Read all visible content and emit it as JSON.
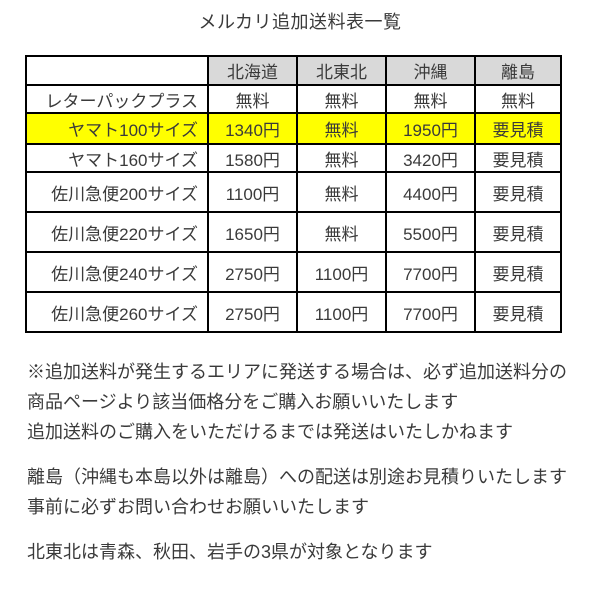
{
  "page": {
    "title": "メルカリ追加送料表一覧"
  },
  "table": {
    "columns": [
      "",
      "北海道",
      "北東北",
      "沖縄",
      "離島"
    ],
    "rows": [
      {
        "label": "レターパックプラス",
        "values": [
          "無料",
          "無料",
          "無料",
          "無料"
        ],
        "highlight": false
      },
      {
        "label": "ヤマト100サイズ",
        "values": [
          "1340円",
          "無料",
          "1950円",
          "要見積"
        ],
        "highlight": true
      },
      {
        "label": "ヤマト160サイズ",
        "values": [
          "1580円",
          "無料",
          "3420円",
          "要見積"
        ],
        "highlight": false
      },
      {
        "label": "佐川急便200サイズ",
        "values": [
          "1100円",
          "無料",
          "4400円",
          "要見積"
        ],
        "highlight": false
      },
      {
        "label": "佐川急便220サイズ",
        "values": [
          "1650円",
          "無料",
          "5500円",
          "要見積"
        ],
        "highlight": false
      },
      {
        "label": "佐川急便240サイズ",
        "values": [
          "2750円",
          "1100円",
          "7700円",
          "要見積"
        ],
        "highlight": false
      },
      {
        "label": "佐川急便260サイズ",
        "values": [
          "2750円",
          "1100円",
          "7700円",
          "要見積"
        ],
        "highlight": false
      }
    ],
    "header_bg": "#d9d9d9",
    "highlight_color": "#ffff00",
    "border_color": "#000000"
  },
  "notes": {
    "paragraph1": [
      "※追加送料が発生するエリアに発送する場合は、必ず追加送料分の",
      "商品ページより該当価格分をご購入お願いいたします",
      "追加送料のご購入をいただけるまでは発送はいたしかねます"
    ],
    "paragraph2": [
      "離島（沖縄も本島以外は離島）への配送は別途お見積りいたします",
      "事前に必ずお問い合わせお願いいたします"
    ],
    "paragraph3": [
      "北東北は青森、秋田、岩手の3県が対象となります"
    ]
  }
}
